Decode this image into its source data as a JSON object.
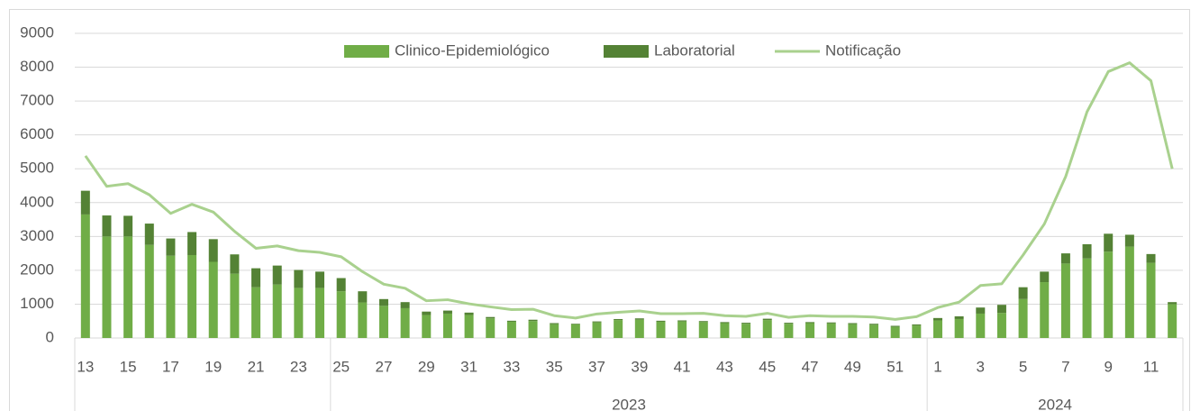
{
  "chart_data": {
    "type": "stacked_bar_line",
    "categories": [
      "13",
      null,
      "15",
      null,
      "17",
      null,
      "19",
      null,
      "21",
      null,
      "23",
      null,
      "25",
      null,
      "27",
      null,
      "29",
      null,
      "31",
      null,
      "33",
      null,
      "35",
      null,
      "37",
      null,
      "39",
      null,
      "41",
      null,
      "43",
      null,
      "45",
      null,
      "47",
      null,
      "49",
      null,
      "51",
      null,
      "1",
      null,
      "3",
      null,
      "5",
      null,
      "7",
      null,
      "9",
      null,
      "11",
      null
    ],
    "group_labels": [
      null,
      "2023",
      "2024"
    ],
    "series": [
      {
        "name": "Clinico-Epidemiológico",
        "color": "#70ad47",
        "kind": "bar",
        "values": [
          3650,
          3000,
          3000,
          2750,
          2430,
          2450,
          2250,
          1900,
          1500,
          1580,
          1480,
          1480,
          1380,
          1050,
          950,
          880,
          680,
          720,
          680,
          580,
          480,
          500,
          410,
          400,
          460,
          530,
          540,
          480,
          490,
          470,
          440,
          420,
          530,
          420,
          440,
          430,
          410,
          390,
          330,
          370,
          520,
          560,
          720,
          740,
          1150,
          1650,
          2200,
          2350,
          2550,
          2700,
          2220,
          1000
        ]
      },
      {
        "name": "Laboratorial",
        "color": "#548235",
        "kind": "bar",
        "values": [
          700,
          620,
          610,
          630,
          510,
          680,
          670,
          570,
          560,
          560,
          530,
          480,
          390,
          330,
          200,
          180,
          100,
          90,
          70,
          40,
          30,
          40,
          30,
          20,
          30,
          30,
          40,
          30,
          30,
          30,
          30,
          30,
          40,
          30,
          30,
          30,
          30,
          30,
          30,
          30,
          70,
          80,
          180,
          240,
          350,
          310,
          300,
          420,
          530,
          350,
          260,
          60
        ]
      },
      {
        "name": "Notificação",
        "color": "#a9d18e",
        "kind": "line",
        "values": [
          5380,
          4480,
          4560,
          4230,
          3680,
          3950,
          3720,
          3150,
          2650,
          2720,
          2580,
          2530,
          2400,
          1960,
          1590,
          1470,
          1100,
          1130,
          1010,
          920,
          840,
          850,
          660,
          590,
          710,
          760,
          800,
          720,
          720,
          730,
          660,
          640,
          730,
          610,
          660,
          640,
          640,
          620,
          550,
          630,
          900,
          1060,
          1550,
          1600,
          2450,
          3370,
          4770,
          6680,
          7870,
          8130,
          7600,
          5000
        ]
      }
    ],
    "ylim": [
      0,
      9000
    ],
    "yticks": [
      0,
      1000,
      2000,
      3000,
      4000,
      5000,
      6000,
      7000,
      8000,
      9000
    ],
    "grid": true,
    "legend": "top"
  }
}
